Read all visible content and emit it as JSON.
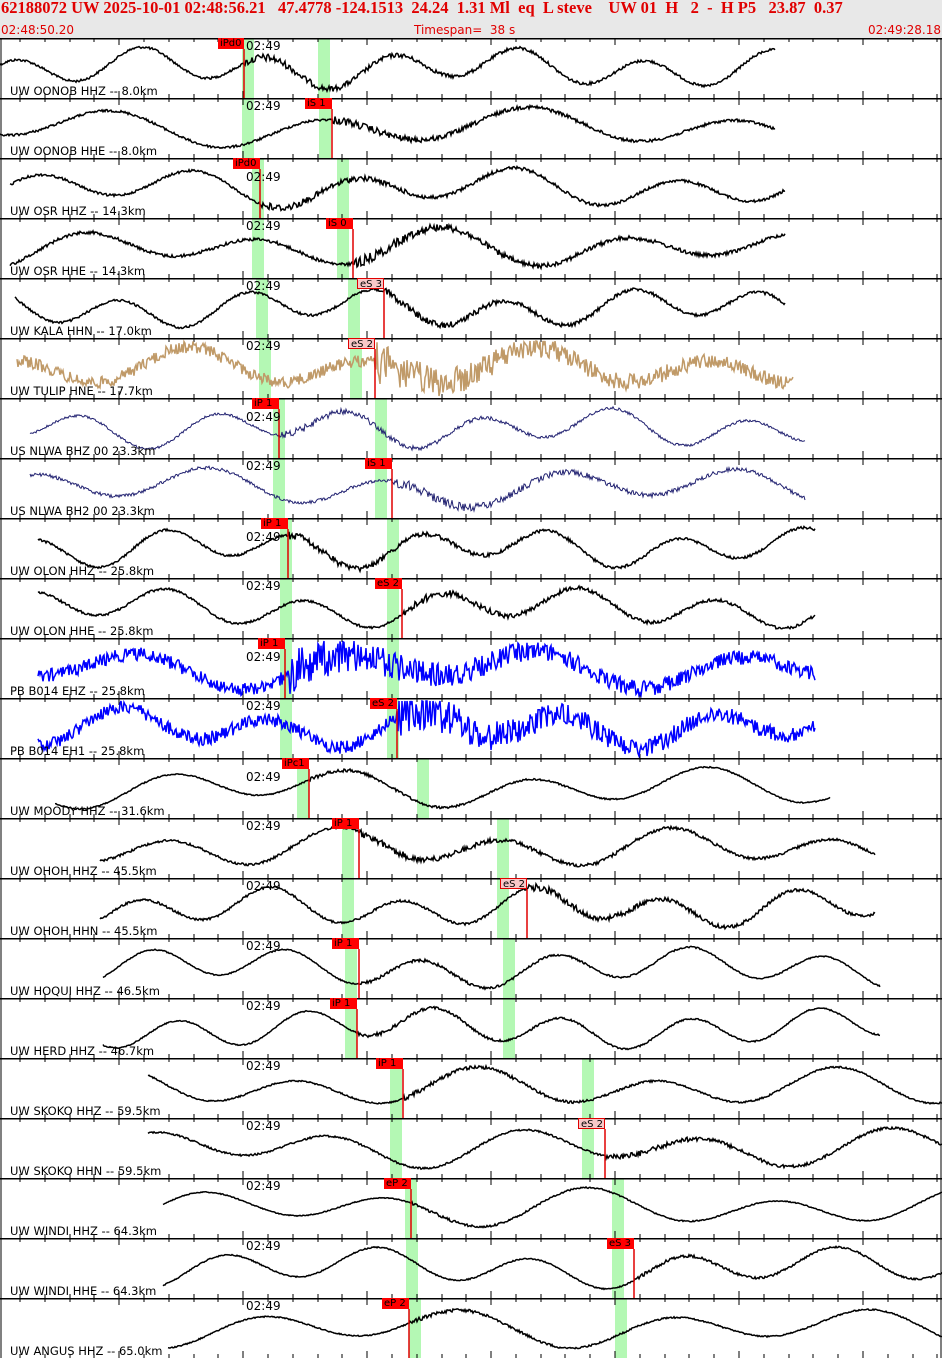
{
  "header": {
    "event_line": "62188072 UW 2025-10-01 02:48:56.21   47.4778 -124.1513  24.24  1.31 Ml  eq  L steve    UW 01  H   2  -  H P5   23.87  0.37",
    "start_time": "02:48:50.20",
    "timespan": "Timespan=  38 s",
    "end_time": "02:49:28.18"
  },
  "colors": {
    "accent": "#e00000",
    "band": "#b4f8b4",
    "trace_default": "#000000"
  },
  "minute_label": "02:49",
  "traces": [
    {
      "station": "UW OONOB HHZ -- 8.0km",
      "pick": "iPd0",
      "pick_style": "filled",
      "color": "#000000"
    },
    {
      "station": "UW OONOB HHE -- 8.0km",
      "pick": "iS 1",
      "pick_style": "filled",
      "color": "#000000"
    },
    {
      "station": "UW OSR HHZ -- 14.3km",
      "pick": "iPd0",
      "pick_style": "filled",
      "color": "#000000"
    },
    {
      "station": "UW OSR HHE -- 14.3km",
      "pick": "iS 0",
      "pick_style": "filled",
      "color": "#000000"
    },
    {
      "station": "UW KALA HHN -- 17.0km",
      "pick": "eS 3",
      "pick_style": "outline",
      "color": "#000000"
    },
    {
      "station": "UW TULIP HNE -- 17.7km",
      "pick": "eS 2",
      "pick_style": "outline",
      "color": "#c09a68"
    },
    {
      "station": "US NLWA BHZ 00 23.3km",
      "pick": "iP 1",
      "pick_style": "filled",
      "color": "#202070"
    },
    {
      "station": "US NLWA BH2 00 23.3km",
      "pick": "iS 1",
      "pick_style": "filled",
      "color": "#202070"
    },
    {
      "station": "UW OLON HHZ -- 25.8km",
      "pick": "iP 1",
      "pick_style": "filled",
      "color": "#000000"
    },
    {
      "station": "UW OLON HHE -- 25.8km",
      "pick": "eS 2",
      "pick_style": "filled",
      "color": "#000000"
    },
    {
      "station": "PB B014 EHZ -- 25.8km",
      "pick": "iP 1",
      "pick_style": "filled",
      "color": "#0000ff"
    },
    {
      "station": "PB B014 EH1 -- 25.8km",
      "pick": "eS 2",
      "pick_style": "filled",
      "color": "#0000ff"
    },
    {
      "station": "UW MOODY HHZ -- 31.6km",
      "pick": "iPc1",
      "pick_style": "filled",
      "color": "#000000"
    },
    {
      "station": "UW OHOH HHZ -- 45.5km",
      "pick": "iP 1",
      "pick_style": "filled",
      "color": "#000000"
    },
    {
      "station": "UW OHOH HHN -- 45.5km",
      "pick": "eS 2",
      "pick_style": "outline",
      "color": "#000000"
    },
    {
      "station": "UW HOQUI HHZ -- 46.5km",
      "pick": "iP 1",
      "pick_style": "filled",
      "color": "#000000"
    },
    {
      "station": "UW HERD HHZ -- 46.7km",
      "pick": "iP 1",
      "pick_style": "filled",
      "color": "#000000"
    },
    {
      "station": "UW SKOKO HHZ -- 59.5km",
      "pick": "iP 1",
      "pick_style": "filled",
      "color": "#000000"
    },
    {
      "station": "UW SKOKO HHN -- 59.5km",
      "pick": "eS 2",
      "pick_style": "outline",
      "color": "#000000"
    },
    {
      "station": "UW WINDI HHZ -- 64.3km",
      "pick": "eP 2",
      "pick_style": "filled",
      "color": "#000000"
    },
    {
      "station": "UW WINDI HHE -- 64.3km",
      "pick": "eS 3",
      "pick_style": "filled",
      "color": "#000000"
    },
    {
      "station": "UW ANGUS HHZ -- 65.0km",
      "pick": "eP 2",
      "pick_style": "filled",
      "color": "#000000"
    }
  ]
}
